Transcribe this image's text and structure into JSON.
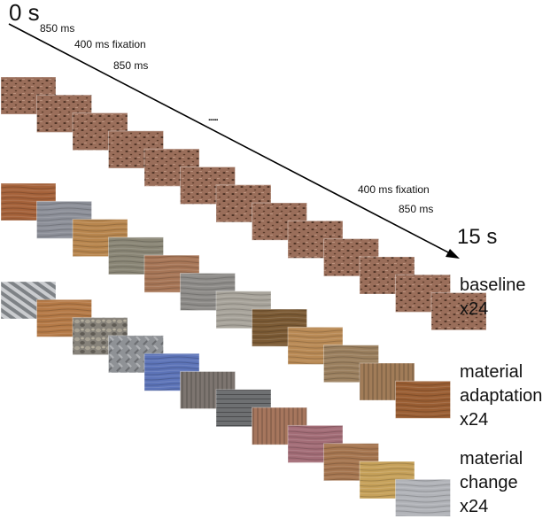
{
  "timeline": {
    "start": "0 s",
    "end": "15 s",
    "dots": "......",
    "annotations": [
      "850 ms",
      "400 ms fixation",
      "850 ms",
      "400 ms fixation",
      "850 ms"
    ]
  },
  "conditions": [
    {
      "name": "baseline",
      "reps": "x24"
    },
    {
      "name": "material adaptation",
      "lines": [
        "material",
        "adaptation"
      ],
      "reps": "x24"
    },
    {
      "name": "material change",
      "lines": [
        "material",
        "change"
      ],
      "reps": "x24"
    }
  ],
  "colors": {
    "baseline_texture": "#9a6e5a",
    "line": "#000000"
  },
  "tiles": {
    "baseline": [
      "cork",
      "cork",
      "cork",
      "cork",
      "cork",
      "cork",
      "cork",
      "cork",
      "cork",
      "cork",
      "cork",
      "cork",
      "cork"
    ],
    "adaptation": [
      "wood-orange",
      "brushed-metal",
      "wood-light",
      "weathered-wood",
      "wood-grain",
      "wood-knot",
      "gray-wood",
      "wood-dark-knot",
      "wood-plank",
      "wood-grain-2",
      "wood-vertical",
      "wood-burl"
    ],
    "change": [
      "zebra-metal",
      "wood-panel",
      "pebbles",
      "diamond-plate",
      "blue-plastic",
      "gray-wood-boards",
      "stacked-slate",
      "copper-stripes",
      "fabric-pink",
      "wood-grain-3",
      "golden-foil",
      "polished-steel"
    ]
  },
  "tile_colors": {
    "cork": "#9a6e5a",
    "wood-orange": "#a5623a",
    "brushed-metal": "#8d9099",
    "wood-light": "#b8864e",
    "weathered-wood": "#8a8676",
    "wood-grain": "#a77657",
    "wood-knot": "#8e8c89",
    "gray-wood": "#a8a49b",
    "wood-dark-knot": "#7b5a34",
    "wood-plank": "#b98a55",
    "wood-grain-2": "#9b805f",
    "wood-vertical": "#a17c58",
    "wood-burl": "#9a5e33",
    "zebra-metal": "#9ea2a8",
    "wood-panel": "#b57a47",
    "pebbles": "#86827a",
    "diamond-plate": "#8f9296",
    "blue-plastic": "#5d74b8",
    "gray-wood-boards": "#7d7570",
    "stacked-slate": "#6e7072",
    "copper-stripes": "#a6765d",
    "fabric-pink": "#a36d77",
    "wood-grain-3": "#a67650",
    "golden-foil": "#c6a15a",
    "polished-steel": "#b1b3b8"
  }
}
